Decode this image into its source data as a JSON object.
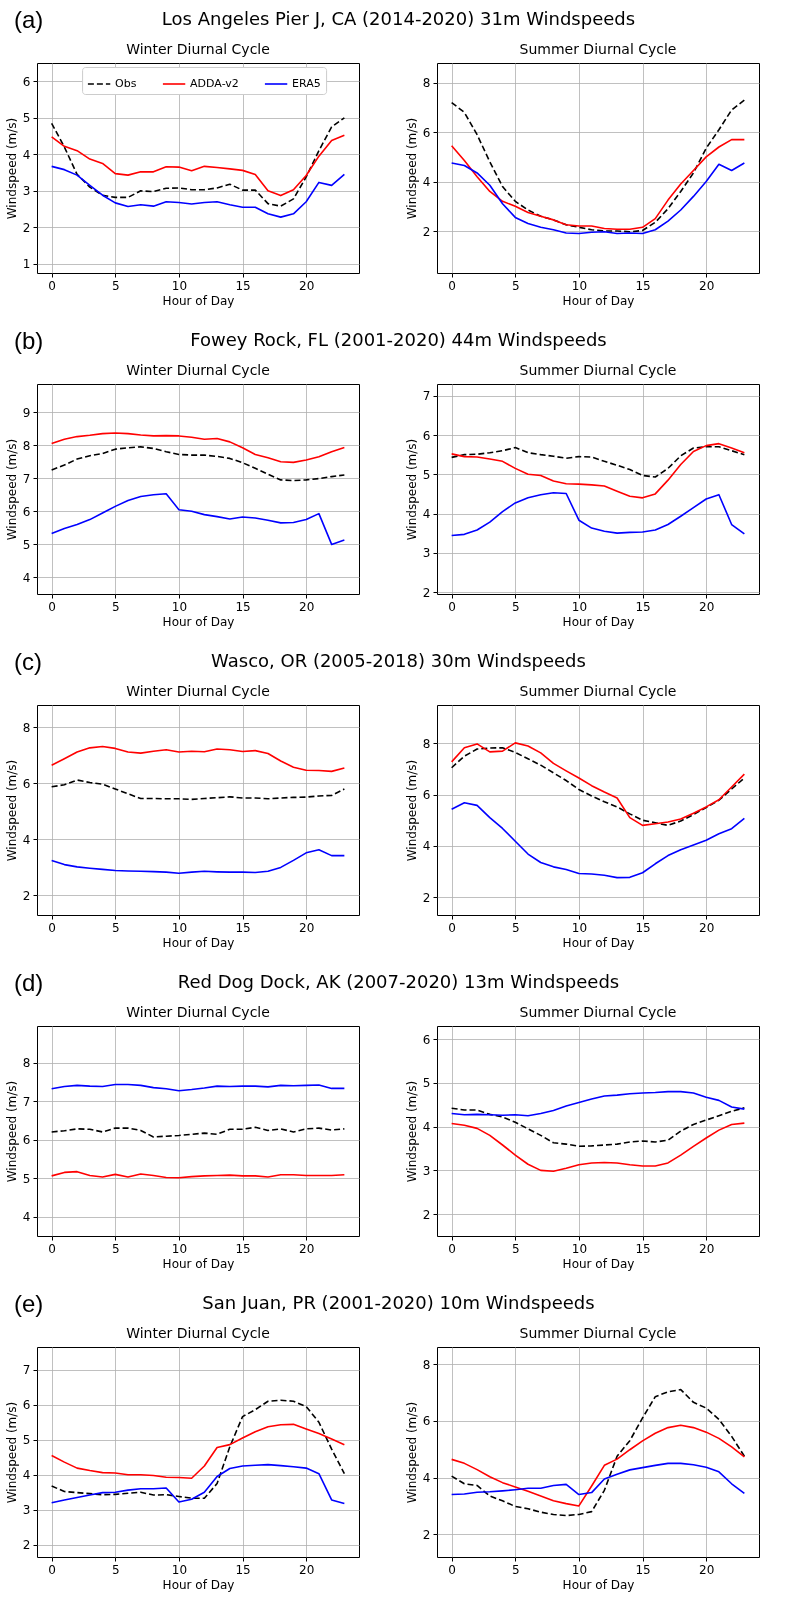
{
  "chart_data": [
    {
      "type": "line",
      "title": "Winter Diurnal Cycle",
      "annotations": [
        "(a)",
        "Los Angeles Pier J, CA (2014-2020) 31m Windspeeds"
      ],
      "xlabel": "Hour of Day",
      "ylabel": "Windspeed (m/s)",
      "x": [
        0,
        1,
        2,
        3,
        4,
        5,
        6,
        7,
        8,
        9,
        10,
        11,
        12,
        13,
        14,
        15,
        16,
        17,
        18,
        19,
        20,
        21,
        22,
        23
      ],
      "xlim": [
        -1.15,
        24.15
      ],
      "xticks": [
        0,
        5,
        10,
        15,
        20
      ],
      "ylim": [
        0.75,
        6.5
      ],
      "yticks": [
        1,
        2,
        3,
        4,
        5,
        6
      ],
      "grid": true,
      "legend": "top",
      "series": [
        {
          "name": "Obs",
          "color": "#000000",
          "line_style": "dashed",
          "values": [
            4.85,
            4.2,
            3.45,
            3.1,
            2.88,
            2.82,
            2.82,
            3.0,
            2.98,
            3.07,
            3.08,
            3.03,
            3.03,
            3.08,
            3.18,
            3.02,
            3.02,
            2.65,
            2.58,
            2.78,
            3.38,
            4.1,
            4.75,
            5.0
          ]
        },
        {
          "name": "ADDA-v2",
          "color": "#ff0000",
          "values": [
            4.48,
            4.22,
            4.1,
            3.87,
            3.75,
            3.47,
            3.43,
            3.52,
            3.52,
            3.66,
            3.65,
            3.55,
            3.67,
            3.64,
            3.6,
            3.56,
            3.45,
            3.0,
            2.87,
            3.03,
            3.42,
            3.95,
            4.38,
            4.52
          ]
        },
        {
          "name": "ERA5",
          "color": "#0000ff",
          "values": [
            3.67,
            3.58,
            3.43,
            3.15,
            2.88,
            2.67,
            2.57,
            2.62,
            2.58,
            2.7,
            2.68,
            2.64,
            2.68,
            2.7,
            2.62,
            2.55,
            2.55,
            2.37,
            2.28,
            2.37,
            2.7,
            3.23,
            3.15,
            3.45
          ]
        }
      ]
    },
    {
      "type": "line",
      "title": "Summer Diurnal Cycle",
      "xlabel": "Hour of Day",
      "ylabel": "Windspeed (m/s)",
      "x": [
        0,
        1,
        2,
        3,
        4,
        5,
        6,
        7,
        8,
        9,
        10,
        11,
        12,
        13,
        14,
        15,
        16,
        17,
        18,
        19,
        20,
        21,
        22,
        23
      ],
      "xlim": [
        -1.15,
        24.15
      ],
      "xticks": [
        0,
        5,
        10,
        15,
        20
      ],
      "ylim": [
        0.3,
        8.8
      ],
      "yticks": [
        2,
        4,
        6,
        8
      ],
      "grid": true,
      "series": [
        {
          "color": "#000000",
          "line_style": "dashed",
          "values": [
            7.2,
            6.8,
            5.9,
            4.8,
            3.8,
            3.2,
            2.85,
            2.6,
            2.45,
            2.25,
            2.15,
            2.05,
            2.0,
            2.0,
            1.97,
            2.02,
            2.35,
            2.9,
            3.6,
            4.35,
            5.35,
            6.1,
            6.9,
            7.3
          ]
        },
        {
          "color": "#ff0000",
          "values": [
            5.45,
            4.85,
            4.2,
            3.6,
            3.2,
            3.0,
            2.75,
            2.6,
            2.45,
            2.25,
            2.2,
            2.2,
            2.1,
            2.07,
            2.07,
            2.15,
            2.5,
            3.25,
            3.9,
            4.45,
            5.0,
            5.4,
            5.7,
            5.7
          ]
        },
        {
          "color": "#0000ff",
          "values": [
            4.75,
            4.65,
            4.35,
            3.85,
            3.1,
            2.55,
            2.3,
            2.15,
            2.05,
            1.92,
            1.9,
            1.95,
            1.97,
            1.9,
            1.92,
            1.9,
            2.05,
            2.4,
            2.85,
            3.4,
            4.0,
            4.7,
            4.45,
            4.75
          ]
        }
      ]
    },
    {
      "type": "line",
      "title": "Winter Diurnal Cycle",
      "annotations": [
        "(b)",
        "Fowey Rock, FL (2001-2020) 44m Windspeeds"
      ],
      "xlabel": "Hour of Day",
      "ylabel": "Windspeed (m/s)",
      "x": [
        0,
        1,
        2,
        3,
        4,
        5,
        6,
        7,
        8,
        9,
        10,
        11,
        12,
        13,
        14,
        15,
        16,
        17,
        18,
        19,
        20,
        21,
        22,
        23
      ],
      "xlim": [
        -1.15,
        24.15
      ],
      "xticks": [
        0,
        5,
        10,
        15,
        20
      ],
      "ylim": [
        3.5,
        9.85
      ],
      "yticks": [
        4,
        5,
        6,
        7,
        8,
        9
      ],
      "grid": true,
      "series": [
        {
          "color": "#000000",
          "line_style": "dashed",
          "values": [
            7.25,
            7.4,
            7.58,
            7.68,
            7.75,
            7.88,
            7.92,
            7.95,
            7.9,
            7.8,
            7.72,
            7.7,
            7.7,
            7.66,
            7.6,
            7.47,
            7.3,
            7.12,
            6.95,
            6.93,
            6.95,
            6.99,
            7.05,
            7.1
          ]
        },
        {
          "color": "#ff0000",
          "values": [
            8.05,
            8.18,
            8.26,
            8.3,
            8.35,
            8.37,
            8.35,
            8.31,
            8.28,
            8.29,
            8.28,
            8.24,
            8.18,
            8.2,
            8.1,
            7.92,
            7.72,
            7.62,
            7.5,
            7.48,
            7.55,
            7.65,
            7.8,
            7.93
          ]
        },
        {
          "color": "#0000ff",
          "values": [
            5.33,
            5.48,
            5.6,
            5.75,
            5.95,
            6.15,
            6.33,
            6.45,
            6.5,
            6.53,
            6.05,
            6.0,
            5.9,
            5.84,
            5.77,
            5.83,
            5.8,
            5.73,
            5.65,
            5.66,
            5.75,
            5.93,
            5.0,
            5.13
          ]
        }
      ]
    },
    {
      "type": "line",
      "title": "Summer Diurnal Cycle",
      "xlabel": "Hour of Day",
      "ylabel": "Windspeed (m/s)",
      "x": [
        0,
        1,
        2,
        3,
        4,
        5,
        6,
        7,
        8,
        9,
        10,
        11,
        12,
        13,
        14,
        15,
        16,
        17,
        18,
        19,
        20,
        21,
        22,
        23
      ],
      "xlim": [
        -1.15,
        24.15
      ],
      "xticks": [
        0,
        5,
        10,
        15,
        20
      ],
      "ylim": [
        1.95,
        7.3
      ],
      "yticks": [
        2,
        3,
        4,
        5,
        6,
        7
      ],
      "grid": true,
      "series": [
        {
          "color": "#000000",
          "line_style": "dashed",
          "values": [
            5.43,
            5.5,
            5.51,
            5.55,
            5.6,
            5.68,
            5.55,
            5.5,
            5.46,
            5.41,
            5.45,
            5.44,
            5.33,
            5.23,
            5.12,
            4.97,
            4.93,
            5.15,
            5.47,
            5.67,
            5.7,
            5.7,
            5.6,
            5.5
          ]
        },
        {
          "color": "#ff0000",
          "values": [
            5.52,
            5.45,
            5.44,
            5.39,
            5.33,
            5.15,
            5.0,
            4.97,
            4.83,
            4.76,
            4.75,
            4.73,
            4.7,
            4.57,
            4.44,
            4.4,
            4.5,
            4.85,
            5.25,
            5.58,
            5.73,
            5.78,
            5.67,
            5.55
          ]
        },
        {
          "color": "#0000ff",
          "values": [
            3.44,
            3.47,
            3.58,
            3.78,
            4.05,
            4.27,
            4.4,
            4.48,
            4.53,
            4.51,
            3.83,
            3.63,
            3.55,
            3.5,
            3.52,
            3.53,
            3.58,
            3.72,
            3.93,
            4.15,
            4.37,
            4.48,
            3.72,
            3.48
          ]
        }
      ]
    },
    {
      "type": "line",
      "title": "Winter Diurnal Cycle",
      "annotations": [
        "(c)",
        "Wasco, OR (2005-2018) 30m Windspeeds"
      ],
      "xlabel": "Hour of Day",
      "ylabel": "Windspeed (m/s)",
      "x": [
        0,
        1,
        2,
        3,
        4,
        5,
        6,
        7,
        8,
        9,
        10,
        11,
        12,
        13,
        14,
        15,
        16,
        17,
        18,
        19,
        20,
        21,
        22,
        23
      ],
      "xlim": [
        -1.15,
        24.15
      ],
      "xticks": [
        0,
        5,
        10,
        15,
        20
      ],
      "ylim": [
        1.3,
        8.8
      ],
      "yticks": [
        2,
        4,
        6,
        8
      ],
      "grid": true,
      "series": [
        {
          "color": "#000000",
          "line_style": "dashed",
          "values": [
            5.88,
            5.95,
            6.12,
            6.03,
            5.97,
            5.8,
            5.63,
            5.46,
            5.46,
            5.45,
            5.45,
            5.43,
            5.46,
            5.49,
            5.52,
            5.48,
            5.48,
            5.45,
            5.48,
            5.5,
            5.51,
            5.55,
            5.57,
            5.8
          ]
        },
        {
          "color": "#ff0000",
          "values": [
            6.65,
            6.88,
            7.12,
            7.27,
            7.32,
            7.25,
            7.12,
            7.08,
            7.15,
            7.2,
            7.12,
            7.15,
            7.13,
            7.23,
            7.2,
            7.14,
            7.17,
            7.07,
            6.8,
            6.58,
            6.47,
            6.46,
            6.43,
            6.55
          ]
        },
        {
          "color": "#0000ff",
          "values": [
            3.25,
            3.1,
            3.02,
            2.97,
            2.93,
            2.89,
            2.87,
            2.86,
            2.85,
            2.83,
            2.79,
            2.83,
            2.86,
            2.84,
            2.83,
            2.83,
            2.82,
            2.86,
            3.0,
            3.25,
            3.52,
            3.63,
            3.42,
            3.42
          ]
        }
      ]
    },
    {
      "type": "line",
      "title": "Summer Diurnal Cycle",
      "xlabel": "Hour of Day",
      "ylabel": "Windspeed (m/s)",
      "x": [
        0,
        1,
        2,
        3,
        4,
        5,
        6,
        7,
        8,
        9,
        10,
        11,
        12,
        13,
        14,
        15,
        16,
        17,
        18,
        19,
        20,
        21,
        22,
        23
      ],
      "xlim": [
        -1.15,
        24.15
      ],
      "xticks": [
        0,
        5,
        10,
        15,
        20
      ],
      "ylim": [
        1.3,
        9.5
      ],
      "yticks": [
        2,
        4,
        6,
        8
      ],
      "grid": true,
      "series": [
        {
          "color": "#000000",
          "line_style": "dashed",
          "values": [
            7.05,
            7.5,
            7.78,
            7.82,
            7.83,
            7.65,
            7.4,
            7.15,
            6.85,
            6.55,
            6.2,
            5.95,
            5.72,
            5.52,
            5.25,
            5.0,
            4.9,
            4.8,
            4.97,
            5.22,
            5.5,
            5.78,
            6.22,
            6.65
          ]
        },
        {
          "color": "#ff0000",
          "values": [
            7.28,
            7.83,
            7.98,
            7.67,
            7.7,
            8.02,
            7.9,
            7.63,
            7.22,
            6.93,
            6.65,
            6.35,
            6.1,
            5.87,
            5.1,
            4.8,
            4.86,
            4.93,
            5.05,
            5.27,
            5.52,
            5.8,
            6.3,
            6.8
          ]
        },
        {
          "color": "#0000ff",
          "values": [
            5.43,
            5.68,
            5.58,
            5.1,
            4.68,
            4.18,
            3.68,
            3.35,
            3.18,
            3.08,
            2.92,
            2.9,
            2.85,
            2.76,
            2.77,
            2.95,
            3.3,
            3.62,
            3.85,
            4.03,
            4.22,
            4.47,
            4.67,
            5.07
          ]
        }
      ]
    },
    {
      "type": "line",
      "title": "Winter Diurnal Cycle",
      "annotations": [
        "(d)",
        "Red Dog Dock, AK (2007-2020) 13m Windspeeds"
      ],
      "xlabel": "Hour of Day",
      "ylabel": "Windspeed (m/s)",
      "x": [
        0,
        1,
        2,
        3,
        4,
        5,
        6,
        7,
        8,
        9,
        10,
        11,
        12,
        13,
        14,
        15,
        16,
        17,
        18,
        19,
        20,
        21,
        22,
        23
      ],
      "xlim": [
        -1.15,
        24.15
      ],
      "xticks": [
        0,
        5,
        10,
        15,
        20
      ],
      "ylim": [
        3.5,
        8.95
      ],
      "yticks": [
        4,
        5,
        6,
        7,
        8
      ],
      "grid": true,
      "series": [
        {
          "color": "#000000",
          "line_style": "dashed",
          "values": [
            6.2,
            6.23,
            6.28,
            6.27,
            6.2,
            6.3,
            6.3,
            6.24,
            6.07,
            6.09,
            6.11,
            6.14,
            6.17,
            6.14,
            6.27,
            6.27,
            6.32,
            6.24,
            6.28,
            6.2,
            6.28,
            6.3,
            6.25,
            6.28
          ]
        },
        {
          "color": "#ff0000",
          "values": [
            5.06,
            5.15,
            5.17,
            5.07,
            5.03,
            5.1,
            5.03,
            5.11,
            5.07,
            5.02,
            5.01,
            5.04,
            5.06,
            5.07,
            5.08,
            5.06,
            5.06,
            5.03,
            5.09,
            5.09,
            5.07,
            5.07,
            5.07,
            5.09
          ]
        },
        {
          "color": "#0000ff",
          "values": [
            7.32,
            7.38,
            7.41,
            7.39,
            7.38,
            7.43,
            7.43,
            7.41,
            7.35,
            7.32,
            7.27,
            7.3,
            7.34,
            7.39,
            7.38,
            7.39,
            7.39,
            7.37,
            7.41,
            7.4,
            7.41,
            7.42,
            7.33,
            7.33
          ]
        }
      ]
    },
    {
      "type": "line",
      "title": "Summer Diurnal Cycle",
      "xlabel": "Hour of Day",
      "ylabel": "Windspeed (m/s)",
      "x": [
        0,
        1,
        2,
        3,
        4,
        5,
        6,
        7,
        8,
        9,
        10,
        11,
        12,
        13,
        14,
        15,
        16,
        17,
        18,
        19,
        20,
        21,
        22,
        23
      ],
      "xlim": [
        -1.15,
        24.15
      ],
      "xticks": [
        0,
        5,
        10,
        15,
        20
      ],
      "ylim": [
        1.5,
        6.3
      ],
      "yticks": [
        2,
        3,
        4,
        5,
        6
      ],
      "grid": true,
      "series": [
        {
          "color": "#000000",
          "line_style": "dashed",
          "values": [
            4.42,
            4.38,
            4.38,
            4.28,
            4.22,
            4.1,
            3.95,
            3.8,
            3.63,
            3.6,
            3.55,
            3.56,
            3.58,
            3.6,
            3.65,
            3.67,
            3.65,
            3.69,
            3.9,
            4.05,
            4.15,
            4.25,
            4.35,
            4.43
          ]
        },
        {
          "color": "#ff0000",
          "values": [
            4.07,
            4.03,
            3.96,
            3.8,
            3.58,
            3.35,
            3.14,
            3.0,
            2.98,
            3.05,
            3.13,
            3.17,
            3.18,
            3.17,
            3.13,
            3.1,
            3.1,
            3.17,
            3.35,
            3.55,
            3.74,
            3.92,
            4.05,
            4.08
          ]
        },
        {
          "color": "#0000ff",
          "values": [
            4.3,
            4.27,
            4.28,
            4.27,
            4.26,
            4.27,
            4.25,
            4.3,
            4.37,
            4.47,
            4.55,
            4.63,
            4.7,
            4.72,
            4.75,
            4.77,
            4.78,
            4.8,
            4.8,
            4.77,
            4.67,
            4.6,
            4.45,
            4.4
          ]
        }
      ]
    },
    {
      "type": "line",
      "title": "Winter Diurnal Cycle",
      "annotations": [
        "(e)",
        "San Juan, PR (2001-2020) 10m Windspeeds"
      ],
      "xlabel": "Hour of Day",
      "ylabel": "Windspeed (m/s)",
      "x": [
        0,
        1,
        2,
        3,
        4,
        5,
        6,
        7,
        8,
        9,
        10,
        11,
        12,
        13,
        14,
        15,
        16,
        17,
        18,
        19,
        20,
        21,
        22,
        23
      ],
      "xlim": [
        -1.15,
        24.15
      ],
      "xticks": [
        0,
        5,
        10,
        15,
        20
      ],
      "ylim": [
        1.65,
        7.65
      ],
      "yticks": [
        2,
        3,
        4,
        5,
        6,
        7
      ],
      "grid": true,
      "series": [
        {
          "color": "#000000",
          "line_style": "dashed",
          "values": [
            3.68,
            3.52,
            3.49,
            3.46,
            3.43,
            3.44,
            3.47,
            3.5,
            3.42,
            3.43,
            3.38,
            3.33,
            3.33,
            3.75,
            4.8,
            5.66,
            5.86,
            6.1,
            6.13,
            6.1,
            5.95,
            5.5,
            4.73,
            4.03
          ]
        },
        {
          "color": "#ff0000",
          "values": [
            4.55,
            4.36,
            4.19,
            4.12,
            4.06,
            4.05,
            4.0,
            4.0,
            3.98,
            3.93,
            3.92,
            3.9,
            4.25,
            4.78,
            4.86,
            5.05,
            5.23,
            5.37,
            5.43,
            5.44,
            5.31,
            5.18,
            5.02,
            4.86
          ]
        },
        {
          "color": "#0000ff",
          "values": [
            3.2,
            3.28,
            3.35,
            3.42,
            3.49,
            3.5,
            3.56,
            3.6,
            3.6,
            3.62,
            3.22,
            3.3,
            3.5,
            3.95,
            4.18,
            4.25,
            4.27,
            4.29,
            4.26,
            4.23,
            4.19,
            4.03,
            3.28,
            3.18
          ]
        }
      ]
    },
    {
      "type": "line",
      "title": "Summer Diurnal Cycle",
      "xlabel": "Hour of Day",
      "ylabel": "Windspeed (m/s)",
      "x": [
        0,
        1,
        2,
        3,
        4,
        5,
        6,
        7,
        8,
        9,
        10,
        11,
        12,
        13,
        14,
        15,
        16,
        17,
        18,
        19,
        20,
        21,
        22,
        23
      ],
      "xlim": [
        -1.15,
        24.15
      ],
      "xticks": [
        0,
        5,
        10,
        15,
        20
      ],
      "ylim": [
        1.2,
        8.6
      ],
      "yticks": [
        2,
        4,
        6,
        8
      ],
      "grid": true,
      "series": [
        {
          "color": "#000000",
          "line_style": "dashed",
          "values": [
            4.05,
            3.78,
            3.72,
            3.35,
            3.18,
            2.98,
            2.9,
            2.78,
            2.7,
            2.66,
            2.7,
            2.8,
            3.55,
            4.75,
            5.3,
            6.1,
            6.85,
            7.02,
            7.1,
            6.65,
            6.45,
            6.05,
            5.45,
            4.75
          ]
        },
        {
          "color": "#ff0000",
          "values": [
            4.64,
            4.5,
            4.28,
            4.03,
            3.82,
            3.67,
            3.52,
            3.35,
            3.18,
            3.08,
            3.0,
            3.7,
            4.43,
            4.65,
            4.98,
            5.29,
            5.56,
            5.76,
            5.84,
            5.76,
            5.6,
            5.38,
            5.08,
            4.73
          ]
        },
        {
          "color": "#0000ff",
          "values": [
            3.4,
            3.42,
            3.48,
            3.5,
            3.53,
            3.57,
            3.62,
            3.62,
            3.72,
            3.76,
            3.4,
            3.47,
            3.95,
            4.12,
            4.27,
            4.35,
            4.43,
            4.5,
            4.5,
            4.45,
            4.36,
            4.2,
            3.78,
            3.44
          ]
        }
      ]
    }
  ]
}
